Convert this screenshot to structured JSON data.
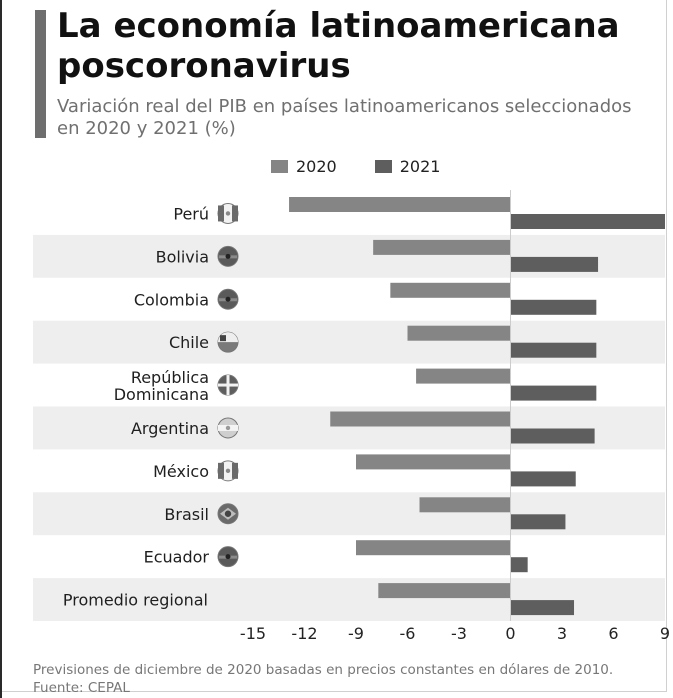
{
  "title": "La economía latinoamericana poscoronavirus",
  "subtitle": "Variación real del PIB en países latinoamericanos seleccionados en 2020 y 2021 (%)",
  "footer": {
    "note": "Previsiones de diciembre de 2020 basadas en precios constantes en dólares de 2010.",
    "source": "Fuente: CEPAL"
  },
  "colors": {
    "s2020": "#858585",
    "s2021": "#5e5e5e",
    "band": "#eeeeee"
  },
  "chart_data": {
    "type": "bar",
    "orientation": "horizontal",
    "title": "La economía latinoamericana poscoronavirus",
    "subtitle": "Variación real del PIB en países latinoamericanos seleccionados en 2020 y 2021 (%)",
    "xlabel": "",
    "ylabel": "",
    "xlim": [
      -15,
      9
    ],
    "xticks": [
      -15,
      -12,
      -9,
      -6,
      -3,
      0,
      3,
      6,
      9
    ],
    "grid": false,
    "legend": "top",
    "categories": [
      {
        "label": "Perú",
        "flag": "peru"
      },
      {
        "label": "Bolivia",
        "flag": "bolivia"
      },
      {
        "label": "Colombia",
        "flag": "colombia"
      },
      {
        "label": "Chile",
        "flag": "chile"
      },
      {
        "label": "República\nDominicana",
        "flag": "dominican"
      },
      {
        "label": "Argentina",
        "flag": "argentina"
      },
      {
        "label": "México",
        "flag": "mexico"
      },
      {
        "label": "Brasil",
        "flag": "brazil"
      },
      {
        "label": "Ecuador",
        "flag": "ecuador"
      },
      {
        "label": "Promedio regional",
        "flag": ""
      }
    ],
    "series": [
      {
        "name": "2020",
        "values": [
          -12.9,
          -8.0,
          -7.0,
          -6.0,
          -5.5,
          -10.5,
          -9.0,
          -5.3,
          -9.0,
          -7.7
        ]
      },
      {
        "name": "2021",
        "values": [
          9.0,
          5.1,
          5.0,
          5.0,
          5.0,
          4.9,
          3.8,
          3.2,
          1.0,
          3.7
        ]
      }
    ]
  }
}
